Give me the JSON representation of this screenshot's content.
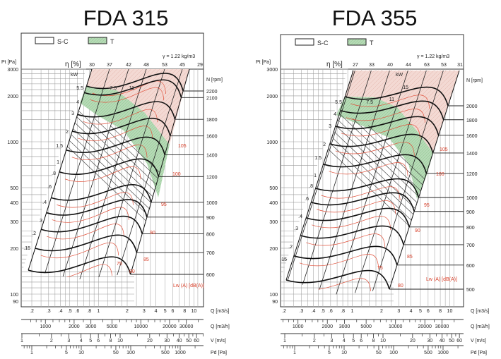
{
  "chart_data": [
    {
      "type": "line",
      "title": "FDA 315",
      "legend": [
        {
          "label": "S-C",
          "color": "#ffffff"
        },
        {
          "label": "T",
          "color": "#b5dab5"
        }
      ],
      "density_label": "γ = 1.22 kg/m3",
      "ylabel": "Pt [Pa]",
      "yscale": "log",
      "ylim": [
        90,
        3000
      ],
      "y_ticks": [
        "3000",
        "2000",
        "1000",
        "500",
        "400",
        "300",
        "200",
        "100",
        "90"
      ],
      "efficiency_label": "η [%]",
      "efficiency_values": [
        "30",
        "37",
        "42",
        "48",
        "53",
        "45",
        "29"
      ],
      "power_label": "kW",
      "power_values": [
        "5.5",
        "7.5",
        "11",
        "4",
        "3",
        "2",
        "1.5",
        "1",
        ".8",
        ".6",
        ".4",
        ".3",
        ".2",
        ".15"
      ],
      "speed_label": "N [rpm]",
      "speed_values": [
        "2200",
        "2100",
        "1800",
        "1600",
        "1400",
        "1200",
        "1000",
        "900",
        "800",
        "700",
        "600"
      ],
      "sound_label": "Lw (A)  [dB(A)]",
      "sound_values": [
        "105",
        "100",
        "95",
        "90",
        "85",
        "80",
        "75"
      ],
      "x_axes": [
        {
          "label": "Q [m3/s]",
          "ticks": [
            ".2",
            ".3",
            ".4",
            ".5",
            ".6",
            ".8",
            "1",
            "2",
            "3",
            "4",
            "5",
            "6",
            "8",
            "10"
          ]
        },
        {
          "label": "Q [m3/h]",
          "ticks": [
            "1000",
            "2000",
            "3000",
            "5000",
            "10000",
            "20000",
            "30000"
          ]
        },
        {
          "label": "V [m/s]",
          "ticks": [
            "1",
            "2",
            "3",
            "4",
            "5",
            "6",
            "8",
            "10",
            "20",
            "30",
            "40",
            "50",
            "60"
          ]
        },
        {
          "label": "Pd [Pa]",
          "ticks": [
            "1",
            "5",
            "10",
            "50",
            "100",
            "500",
            "1000"
          ]
        }
      ],
      "regions": [
        {
          "name": "S-C",
          "color": "#f3d9d3"
        },
        {
          "name": "T",
          "color": "#b5dab5"
        }
      ]
    },
    {
      "type": "line",
      "title": "FDA 355",
      "legend": [
        {
          "label": "S-C",
          "color": "#ffffff"
        },
        {
          "label": "T",
          "color": "#b5dab5"
        }
      ],
      "density_label": "γ = 1.22 kg/m3",
      "ylabel": "Pt [Pa]",
      "yscale": "log",
      "ylim": [
        90,
        3000
      ],
      "y_ticks": [
        "3000",
        "2000",
        "1000",
        "500",
        "400",
        "300",
        "200",
        "100",
        "90"
      ],
      "efficiency_label": "η [%]",
      "efficiency_values": [
        "27",
        "33",
        "40",
        "44",
        "63",
        "53",
        "31"
      ],
      "power_label": "kW",
      "power_values": [
        "15",
        "11",
        "7.5",
        "5.5",
        "4",
        "3",
        "2",
        "1.5",
        "1",
        ".8",
        ".6",
        ".4",
        ".3",
        ".2",
        ".15"
      ],
      "speed_label": "N [rpm]",
      "speed_values": [
        "2000",
        "1800",
        "1600",
        "1400",
        "1200",
        "1000",
        "900",
        "800",
        "700",
        "600",
        "500"
      ],
      "sound_label": "Lw (A)  [dB(A)]",
      "sound_values": [
        "105",
        "100",
        "95",
        "90",
        "85",
        "80",
        "75"
      ],
      "x_axes": [
        {
          "label": "Q [m3/s]",
          "ticks": [
            ".2",
            ".3",
            ".4",
            ".5",
            ".6",
            ".8",
            "1",
            "2",
            "3",
            "4",
            "5",
            "6",
            "8",
            "10"
          ]
        },
        {
          "label": "Q [m3/h]",
          "ticks": [
            "1000",
            "2000",
            "3000",
            "5000",
            "10000",
            "20000",
            "30000"
          ]
        },
        {
          "label": "V [m/s]",
          "ticks": [
            "1",
            "2",
            "3",
            "4",
            "5",
            "6",
            "8",
            "10",
            "20",
            "30",
            "40",
            "50",
            "60"
          ]
        },
        {
          "label": "Pd [Pa]",
          "ticks": [
            "1",
            "5",
            "10",
            "50",
            "100",
            "500",
            "1000"
          ]
        }
      ],
      "regions": [
        {
          "name": "S-C",
          "color": "#f3d9d3"
        },
        {
          "name": "T",
          "color": "#b5dab5"
        }
      ]
    }
  ]
}
